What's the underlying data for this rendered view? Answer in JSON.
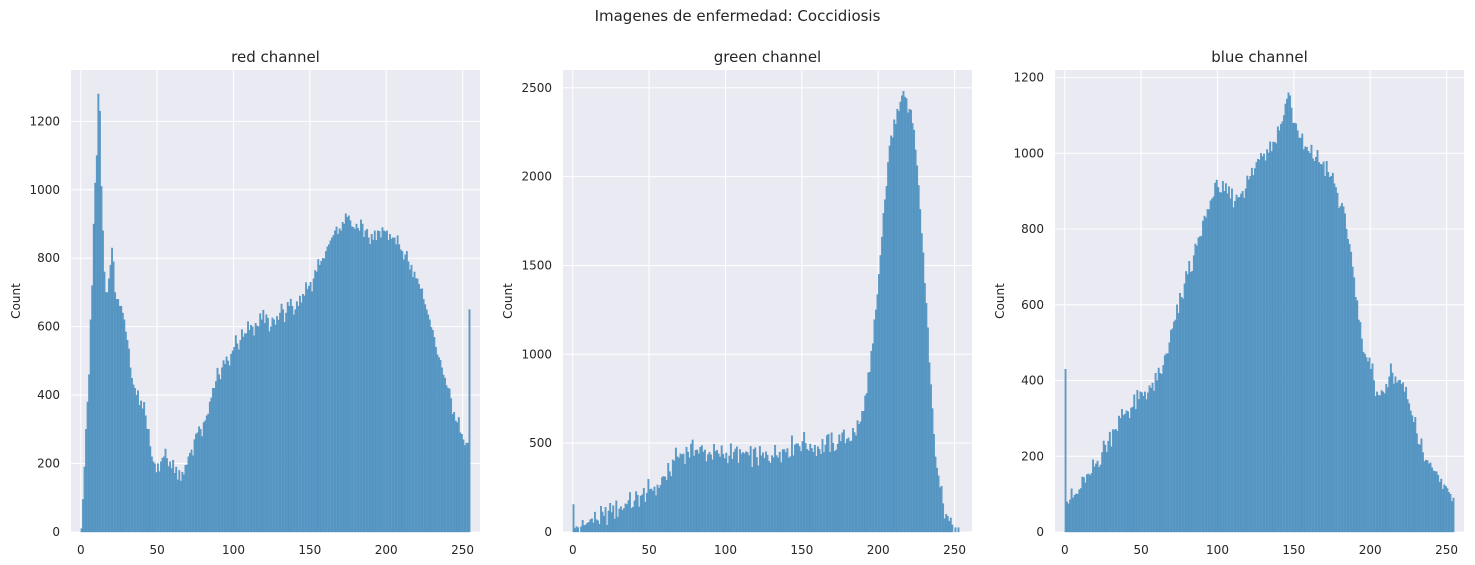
{
  "suptitle": "Imagenes de enfermedad: Coccidiosis",
  "colors": {
    "bar": "#5b9bc8",
    "bar_edge": "#4a87b4",
    "background": "#eaeaf2",
    "grid": "#ffffff"
  },
  "chart_data": [
    {
      "type": "bar",
      "title": "red channel",
      "xlabel": "",
      "ylabel": "Count",
      "xlim": [
        -6.4,
        261.4
      ],
      "ylim": [
        0,
        1350
      ],
      "xticks": [
        0,
        50,
        100,
        150,
        200,
        250
      ],
      "yticks": [
        0,
        200,
        400,
        600,
        800,
        1000,
        1200
      ],
      "grid": true,
      "bin_width": 1,
      "anchors": [
        [
          0,
          10
        ],
        [
          1,
          95
        ],
        [
          2,
          190
        ],
        [
          3,
          300
        ],
        [
          4,
          380
        ],
        [
          5,
          460
        ],
        [
          6,
          620
        ],
        [
          7,
          720
        ],
        [
          8,
          900
        ],
        [
          9,
          1020
        ],
        [
          10,
          1100
        ],
        [
          11,
          1280
        ],
        [
          12,
          1230
        ],
        [
          13,
          1010
        ],
        [
          14,
          880
        ],
        [
          15,
          760
        ],
        [
          16,
          700
        ],
        [
          17,
          700
        ],
        [
          18,
          740
        ],
        [
          19,
          780
        ],
        [
          20,
          830
        ],
        [
          21,
          790
        ],
        [
          22,
          700
        ],
        [
          23,
          680
        ],
        [
          24,
          680
        ],
        [
          25,
          660
        ],
        [
          26,
          660
        ],
        [
          27,
          640
        ],
        [
          28,
          620
        ],
        [
          30,
          560
        ],
        [
          32,
          480
        ],
        [
          34,
          430
        ],
        [
          36,
          400
        ],
        [
          38,
          370
        ],
        [
          40,
          360
        ],
        [
          42,
          340
        ],
        [
          44,
          300
        ],
        [
          45,
          250
        ],
        [
          46,
          220
        ],
        [
          47,
          205
        ],
        [
          48,
          200
        ],
        [
          50,
          200
        ],
        [
          52,
          205
        ],
        [
          54,
          220
        ],
        [
          56,
          215
        ],
        [
          58,
          205
        ],
        [
          60,
          210
        ],
        [
          62,
          190
        ],
        [
          64,
          180
        ],
        [
          66,
          175
        ],
        [
          68,
          195
        ],
        [
          70,
          220
        ],
        [
          72,
          240
        ],
        [
          74,
          270
        ],
        [
          76,
          290
        ],
        [
          78,
          300
        ],
        [
          80,
          320
        ],
        [
          82,
          340
        ],
        [
          84,
          380
        ],
        [
          86,
          420
        ],
        [
          88,
          440
        ],
        [
          90,
          460
        ],
        [
          92,
          480
        ],
        [
          94,
          490
        ],
        [
          96,
          500
        ],
        [
          98,
          520
        ],
        [
          100,
          540
        ],
        [
          102,
          550
        ],
        [
          104,
          560
        ],
        [
          106,
          570
        ],
        [
          108,
          580
        ],
        [
          110,
          590
        ],
        [
          112,
          600
        ],
        [
          114,
          610
        ],
        [
          116,
          600
        ],
        [
          118,
          620
        ],
        [
          120,
          610
        ],
        [
          122,
          625
        ],
        [
          124,
          600
        ],
        [
          126,
          620
        ],
        [
          128,
          630
        ],
        [
          130,
          640
        ],
        [
          132,
          650
        ],
        [
          134,
          640
        ],
        [
          136,
          660
        ],
        [
          138,
          660
        ],
        [
          140,
          650
        ],
        [
          142,
          660
        ],
        [
          144,
          670
        ],
        [
          146,
          690
        ],
        [
          148,
          710
        ],
        [
          150,
          730
        ],
        [
          152,
          740
        ],
        [
          154,
          760
        ],
        [
          156,
          780
        ],
        [
          158,
          800
        ],
        [
          160,
          820
        ],
        [
          162,
          840
        ],
        [
          164,
          860
        ],
        [
          166,
          880
        ],
        [
          168,
          870
        ],
        [
          170,
          880
        ],
        [
          172,
          900
        ],
        [
          174,
          920
        ],
        [
          176,
          910
        ],
        [
          178,
          890
        ],
        [
          180,
          900
        ],
        [
          182,
          880
        ],
        [
          184,
          900
        ],
        [
          186,
          880
        ],
        [
          188,
          860
        ],
        [
          190,
          870
        ],
        [
          192,
          880
        ],
        [
          194,
          880
        ],
        [
          196,
          860
        ],
        [
          198,
          880
        ],
        [
          200,
          880
        ],
        [
          202,
          870
        ],
        [
          204,
          860
        ],
        [
          206,
          840
        ],
        [
          208,
          840
        ],
        [
          210,
          820
        ],
        [
          212,
          810
        ],
        [
          214,
          790
        ],
        [
          216,
          780
        ],
        [
          218,
          760
        ],
        [
          220,
          740
        ],
        [
          222,
          710
        ],
        [
          224,
          680
        ],
        [
          226,
          650
        ],
        [
          228,
          620
        ],
        [
          230,
          590
        ],
        [
          232,
          540
        ],
        [
          234,
          510
        ],
        [
          236,
          480
        ],
        [
          238,
          450
        ],
        [
          240,
          420
        ],
        [
          242,
          390
        ],
        [
          244,
          350
        ],
        [
          246,
          320
        ],
        [
          248,
          290
        ],
        [
          250,
          270
        ],
        [
          252,
          260
        ],
        [
          253,
          260
        ],
        [
          254,
          650
        ],
        [
          255,
          0
        ]
      ]
    },
    {
      "type": "bar",
      "title": "green channel",
      "xlabel": "",
      "ylabel": "Count",
      "xlim": [
        -6.4,
        261.4
      ],
      "ylim": [
        0,
        2600
      ],
      "xticks": [
        0,
        50,
        100,
        150,
        200,
        250
      ],
      "yticks": [
        0,
        500,
        1000,
        1500,
        2000,
        2500
      ],
      "grid": true,
      "bin_width": 1,
      "anchors": [
        [
          0,
          155
        ],
        [
          1,
          20
        ],
        [
          3,
          25
        ],
        [
          5,
          30
        ],
        [
          8,
          40
        ],
        [
          10,
          55
        ],
        [
          15,
          70
        ],
        [
          20,
          90
        ],
        [
          25,
          110
        ],
        [
          30,
          130
        ],
        [
          35,
          155
        ],
        [
          40,
          175
        ],
        [
          45,
          210
        ],
        [
          50,
          240
        ],
        [
          55,
          265
        ],
        [
          60,
          310
        ],
        [
          63,
          340
        ],
        [
          66,
          400
        ],
        [
          70,
          440
        ],
        [
          75,
          450
        ],
        [
          80,
          460
        ],
        [
          85,
          450
        ],
        [
          90,
          435
        ],
        [
          95,
          440
        ],
        [
          100,
          445
        ],
        [
          105,
          450
        ],
        [
          110,
          440
        ],
        [
          115,
          430
        ],
        [
          120,
          420
        ],
        [
          125,
          415
        ],
        [
          130,
          430
        ],
        [
          135,
          450
        ],
        [
          140,
          470
        ],
        [
          145,
          490
        ],
        [
          150,
          510
        ],
        [
          155,
          495
        ],
        [
          160,
          480
        ],
        [
          165,
          490
        ],
        [
          170,
          500
        ],
        [
          175,
          510
        ],
        [
          180,
          530
        ],
        [
          184,
          560
        ],
        [
          188,
          620
        ],
        [
          190,
          680
        ],
        [
          192,
          780
        ],
        [
          194,
          900
        ],
        [
          196,
          1060
        ],
        [
          198,
          1250
        ],
        [
          200,
          1450
        ],
        [
          202,
          1660
        ],
        [
          204,
          1870
        ],
        [
          206,
          2080
        ],
        [
          208,
          2230
        ],
        [
          210,
          2320
        ],
        [
          212,
          2380
        ],
        [
          214,
          2420
        ],
        [
          216,
          2480
        ],
        [
          218,
          2440
        ],
        [
          220,
          2380
        ],
        [
          222,
          2300
        ],
        [
          224,
          2150
        ],
        [
          226,
          1950
        ],
        [
          228,
          1680
        ],
        [
          230,
          1400
        ],
        [
          232,
          1150
        ],
        [
          234,
          830
        ],
        [
          236,
          550
        ],
        [
          238,
          360
        ],
        [
          240,
          250
        ],
        [
          242,
          160
        ],
        [
          244,
          100
        ],
        [
          246,
          60
        ],
        [
          248,
          40
        ],
        [
          250,
          25
        ],
        [
          252,
          25
        ],
        [
          254,
          0
        ],
        [
          255,
          0
        ]
      ]
    },
    {
      "type": "bar",
      "title": "blue channel",
      "xlabel": "",
      "ylabel": "Count",
      "xlim": [
        -6.4,
        261.4
      ],
      "ylim": [
        0,
        1220
      ],
      "xticks": [
        0,
        50,
        100,
        150,
        200,
        250
      ],
      "yticks": [
        0,
        200,
        400,
        600,
        800,
        1000,
        1200
      ],
      "grid": true,
      "bin_width": 1,
      "anchors": [
        [
          0,
          430
        ],
        [
          1,
          80
        ],
        [
          3,
          85
        ],
        [
          5,
          90
        ],
        [
          8,
          100
        ],
        [
          10,
          115
        ],
        [
          13,
          130
        ],
        [
          16,
          150
        ],
        [
          20,
          180
        ],
        [
          24,
          210
        ],
        [
          28,
          240
        ],
        [
          32,
          270
        ],
        [
          36,
          300
        ],
        [
          40,
          320
        ],
        [
          44,
          330
        ],
        [
          48,
          350
        ],
        [
          52,
          370
        ],
        [
          56,
          380
        ],
        [
          60,
          400
        ],
        [
          64,
          440
        ],
        [
          68,
          500
        ],
        [
          72,
          560
        ],
        [
          76,
          620
        ],
        [
          80,
          680
        ],
        [
          84,
          730
        ],
        [
          88,
          780
        ],
        [
          92,
          830
        ],
        [
          96,
          880
        ],
        [
          100,
          910
        ],
        [
          104,
          900
        ],
        [
          108,
          880
        ],
        [
          112,
          890
        ],
        [
          116,
          900
        ],
        [
          120,
          930
        ],
        [
          124,
          960
        ],
        [
          128,
          1000
        ],
        [
          132,
          1010
        ],
        [
          136,
          1030
        ],
        [
          140,
          1060
        ],
        [
          143,
          1100
        ],
        [
          146,
          1160
        ],
        [
          148,
          1120
        ],
        [
          150,
          1080
        ],
        [
          152,
          1060
        ],
        [
          154,
          1040
        ],
        [
          156,
          1010
        ],
        [
          160,
          1000
        ],
        [
          164,
          990
        ],
        [
          168,
          970
        ],
        [
          172,
          950
        ],
        [
          176,
          920
        ],
        [
          180,
          860
        ],
        [
          184,
          800
        ],
        [
          186,
          760
        ],
        [
          188,
          700
        ],
        [
          190,
          620
        ],
        [
          192,
          560
        ],
        [
          194,
          510
        ],
        [
          196,
          470
        ],
        [
          198,
          450
        ],
        [
          200,
          430
        ],
        [
          202,
          400
        ],
        [
          204,
          370
        ],
        [
          206,
          360
        ],
        [
          208,
          370
        ],
        [
          210,
          390
        ],
        [
          212,
          410
        ],
        [
          214,
          420
        ],
        [
          216,
          410
        ],
        [
          218,
          400
        ],
        [
          220,
          390
        ],
        [
          222,
          370
        ],
        [
          224,
          350
        ],
        [
          226,
          320
        ],
        [
          228,
          290
        ],
        [
          230,
          260
        ],
        [
          232,
          230
        ],
        [
          234,
          210
        ],
        [
          236,
          190
        ],
        [
          238,
          180
        ],
        [
          240,
          170
        ],
        [
          242,
          160
        ],
        [
          244,
          150
        ],
        [
          246,
          140
        ],
        [
          248,
          125
        ],
        [
          250,
          115
        ],
        [
          252,
          100
        ],
        [
          254,
          90
        ],
        [
          255,
          0
        ]
      ]
    }
  ]
}
